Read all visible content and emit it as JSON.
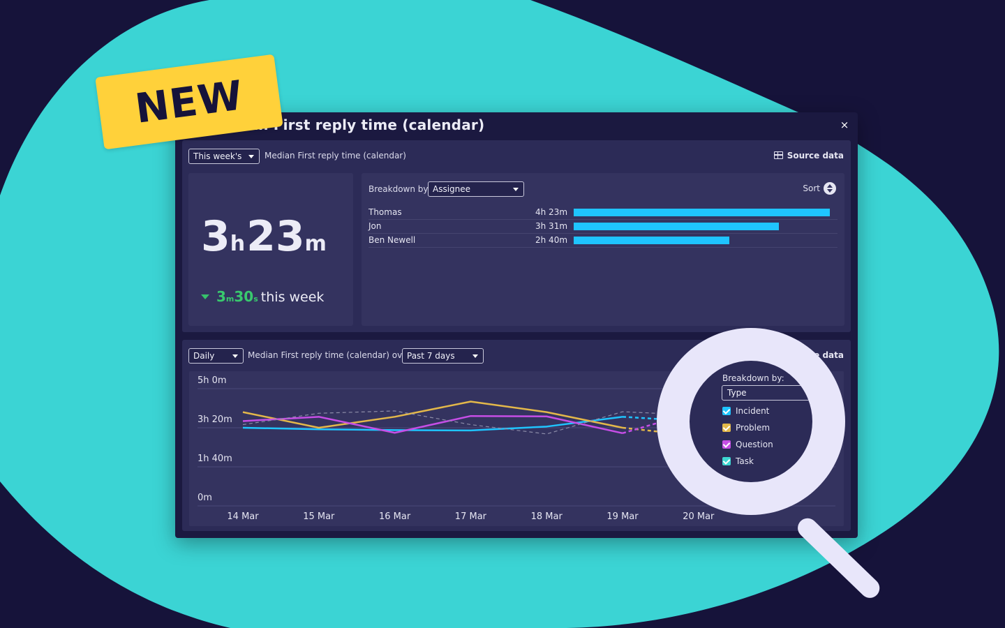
{
  "badge": {
    "text": "NEW"
  },
  "window": {
    "title": "Median First reply time (calendar)",
    "close_label": "×"
  },
  "top_panel": {
    "period_select": "This week's",
    "metric_label": "Median First reply time (calendar)",
    "source_data_label": "Source data",
    "kpi": {
      "hours": "3",
      "hours_unit": "h",
      "minutes": "23",
      "minutes_unit": "m",
      "change_trend": "down",
      "change_minutes": "3",
      "change_minutes_unit": "m",
      "change_seconds": "30",
      "change_seconds_unit": "s",
      "change_suffix": "this week",
      "change_color": "#39c96e"
    },
    "breakdown": {
      "label": "Breakdown by",
      "select": "Assignee",
      "sort_label": "Sort",
      "bar_color": "#1fc4ff",
      "rows": [
        {
          "name": "Thomas",
          "value_label": "4h 23m",
          "minutes": 263
        },
        {
          "name": "Jon",
          "value_label": "3h 31m",
          "minutes": 211
        },
        {
          "name": "Ben Newell",
          "value_label": "2h 40m",
          "minutes": 160
        }
      ]
    }
  },
  "bottom_panel": {
    "interval_select": "Daily",
    "metric_label": "Median First reply time (calendar) over",
    "range_select": "Past 7 days",
    "source_data_label": "Source data",
    "legend": {
      "title": "Breakdown by:",
      "select": "Type",
      "items": [
        {
          "label": "Incident",
          "color": "#1fc4ff"
        },
        {
          "label": "Problem",
          "color": "#e3b84a"
        },
        {
          "label": "Question",
          "color": "#c64ee6"
        },
        {
          "label": "Task",
          "color": "#3dd6d2"
        }
      ]
    }
  },
  "chart_data": {
    "type": "line",
    "x": [
      "14 Mar",
      "15 Mar",
      "16 Mar",
      "17 Mar",
      "18 Mar",
      "19 Mar",
      "20 Mar"
    ],
    "y_ticks": [
      {
        "label": "5h 0m",
        "minutes": 300
      },
      {
        "label": "3h 20m",
        "minutes": 200
      },
      {
        "label": "1h 40m",
        "minutes": 100
      },
      {
        "label": "0m",
        "minutes": 0
      }
    ],
    "ylim_minutes": [
      0,
      300
    ],
    "dashed_last_segment": true,
    "grid": true,
    "series": [
      {
        "name": "Incident",
        "color": "#1fc4ff",
        "values_minutes": [
          200,
          196,
          194,
          193,
          203,
          228,
          216
        ]
      },
      {
        "name": "Problem",
        "color": "#e3b84a",
        "values_minutes": [
          240,
          200,
          228,
          267,
          240,
          200,
          179
        ]
      },
      {
        "name": "Question",
        "color": "#c64ee6",
        "values_minutes": [
          217,
          228,
          187,
          230,
          229,
          186,
          243
        ]
      },
      {
        "name": "",
        "color": "#8c8ca8",
        "dashed": true,
        "values_minutes": [
          208,
          237,
          243,
          208,
          184,
          241,
          232
        ]
      }
    ]
  },
  "colors": {
    "background": "#16133a",
    "blob": "#3bd4d4",
    "badge": "#ffd13a",
    "panel": "#2c2b57",
    "card": "#34335f"
  }
}
